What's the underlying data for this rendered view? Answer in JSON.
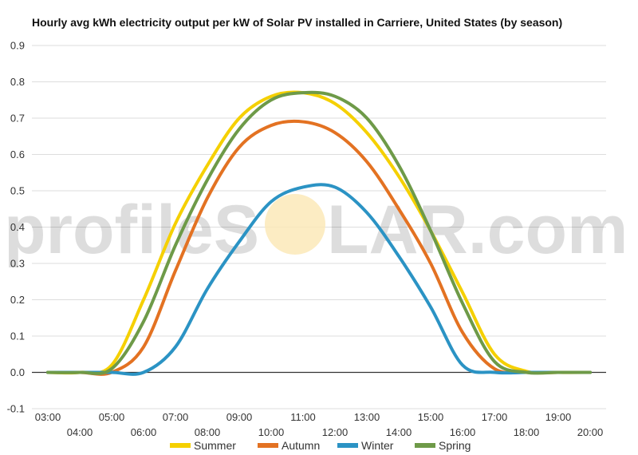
{
  "watermark": {
    "text_left": "profileS",
    "text_right": "LAR.com"
  },
  "chart_data": {
    "type": "line",
    "title": "Hourly avg kWh electricity output per kW of Solar PV installed in Carriere, United States (by season)",
    "xlabel": "",
    "ylabel": "",
    "ylim": [
      -0.1,
      0.9
    ],
    "yticks": [
      -0.1,
      0.0,
      0.1,
      0.2,
      0.3,
      0.4,
      0.5,
      0.6,
      0.7,
      0.8,
      0.9
    ],
    "ytick_labels": [
      "-0.1",
      "0.0",
      "0.1",
      "0.2",
      "0.3",
      "0.4",
      "0.5",
      "0.6",
      "0.7",
      "0.8",
      "0.9"
    ],
    "x": [
      3,
      4,
      5,
      6,
      7,
      8,
      9,
      10,
      11,
      12,
      13,
      14,
      15,
      16,
      17,
      18,
      19,
      20
    ],
    "x_labels": [
      "03:00",
      "04:00",
      "05:00",
      "06:00",
      "07:00",
      "08:00",
      "09:00",
      "10:00",
      "11:00",
      "12:00",
      "13:00",
      "14:00",
      "15:00",
      "16:00",
      "17:00",
      "18:00",
      "19:00",
      "20:00"
    ],
    "grid": true,
    "legend_position": "bottom",
    "series": [
      {
        "name": "Summer",
        "color": "#f5d000",
        "values": [
          0,
          0,
          0.02,
          0.2,
          0.41,
          0.57,
          0.7,
          0.76,
          0.77,
          0.74,
          0.66,
          0.54,
          0.39,
          0.22,
          0.05,
          0.003,
          0.0,
          0.0
        ]
      },
      {
        "name": "Autumn",
        "color": "#e37222",
        "values": [
          0,
          0,
          0,
          0.07,
          0.28,
          0.48,
          0.62,
          0.68,
          0.69,
          0.66,
          0.58,
          0.45,
          0.3,
          0.11,
          0.01,
          0.0,
          0.0,
          0.0
        ]
      },
      {
        "name": "Winter",
        "color": "#2b93c4",
        "values": [
          0,
          0,
          0,
          0.0,
          0.07,
          0.23,
          0.36,
          0.47,
          0.51,
          0.51,
          0.44,
          0.32,
          0.18,
          0.02,
          0.0,
          0.0,
          0.0,
          0.0
        ]
      },
      {
        "name": "Spring",
        "color": "#6e9a48",
        "values": [
          0,
          0,
          0.01,
          0.14,
          0.35,
          0.53,
          0.67,
          0.75,
          0.77,
          0.76,
          0.7,
          0.57,
          0.39,
          0.19,
          0.03,
          0.0,
          0.0,
          0.0
        ]
      }
    ]
  }
}
